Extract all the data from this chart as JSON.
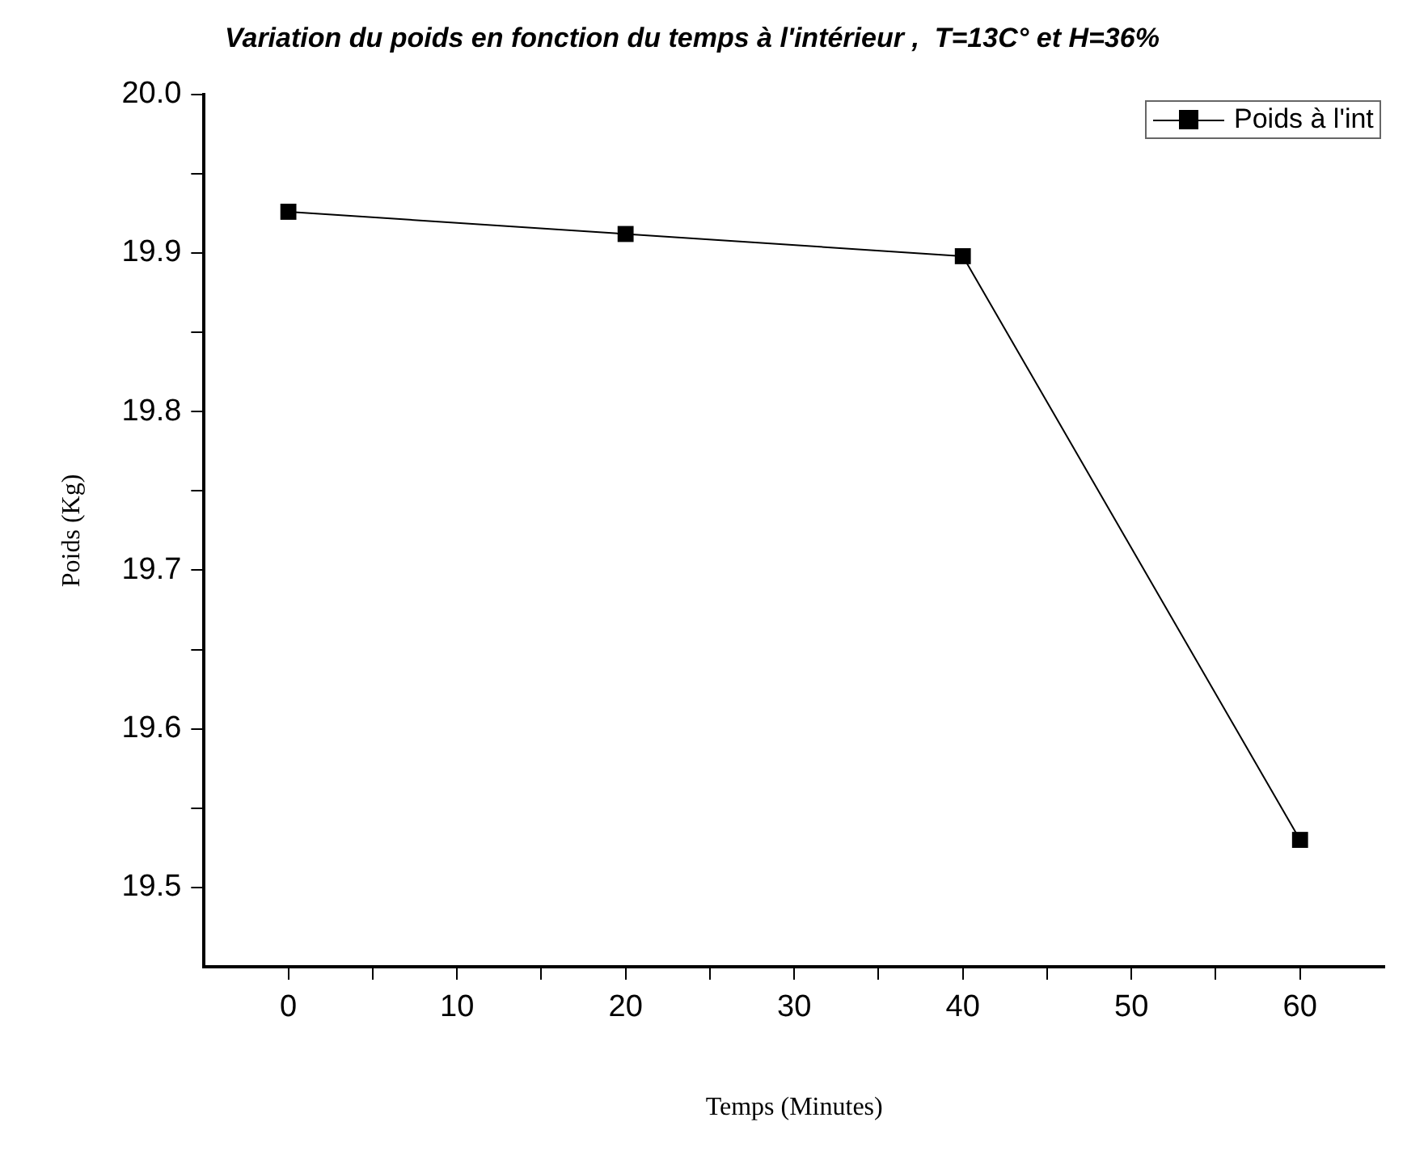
{
  "chart_data": {
    "type": "line",
    "title": "Variation du poids en fonction du temps à l'intérieur ,  T=13C° et H=36%",
    "xlabel": "Temps (Minutes)",
    "ylabel": "Poids (Kg)",
    "x": [
      0,
      20,
      40,
      60
    ],
    "series": [
      {
        "name": "Poids à l'int",
        "color": "#000000",
        "values": [
          19.926,
          19.912,
          19.898,
          19.53
        ]
      }
    ],
    "xlim": [
      -5,
      65
    ],
    "xticks": [
      0,
      {
        "value": 5,
        "label": null
      },
      10,
      {
        "value": 15,
        "label": null
      },
      20,
      {
        "value": 25,
        "label": null
      },
      30,
      {
        "value": 35,
        "label": null
      },
      40,
      {
        "value": 45,
        "label": null
      },
      50,
      {
        "value": 55,
        "label": null
      },
      60
    ],
    "ylim": [
      19.45,
      20.0
    ],
    "yticks": [
      {
        "value": 19.5,
        "label": "19.5"
      },
      {
        "value": 19.55,
        "label": null
      },
      19.6,
      {
        "value": 19.65,
        "label": null
      },
      19.7,
      {
        "value": 19.75,
        "label": null
      },
      19.8,
      {
        "value": 19.85,
        "label": null
      },
      19.9,
      {
        "value": 19.95,
        "label": null
      },
      {
        "value": 20.0,
        "label": "20.0"
      }
    ],
    "grid": false,
    "legend": "top right",
    "marker": "square",
    "line_style": "solid"
  }
}
